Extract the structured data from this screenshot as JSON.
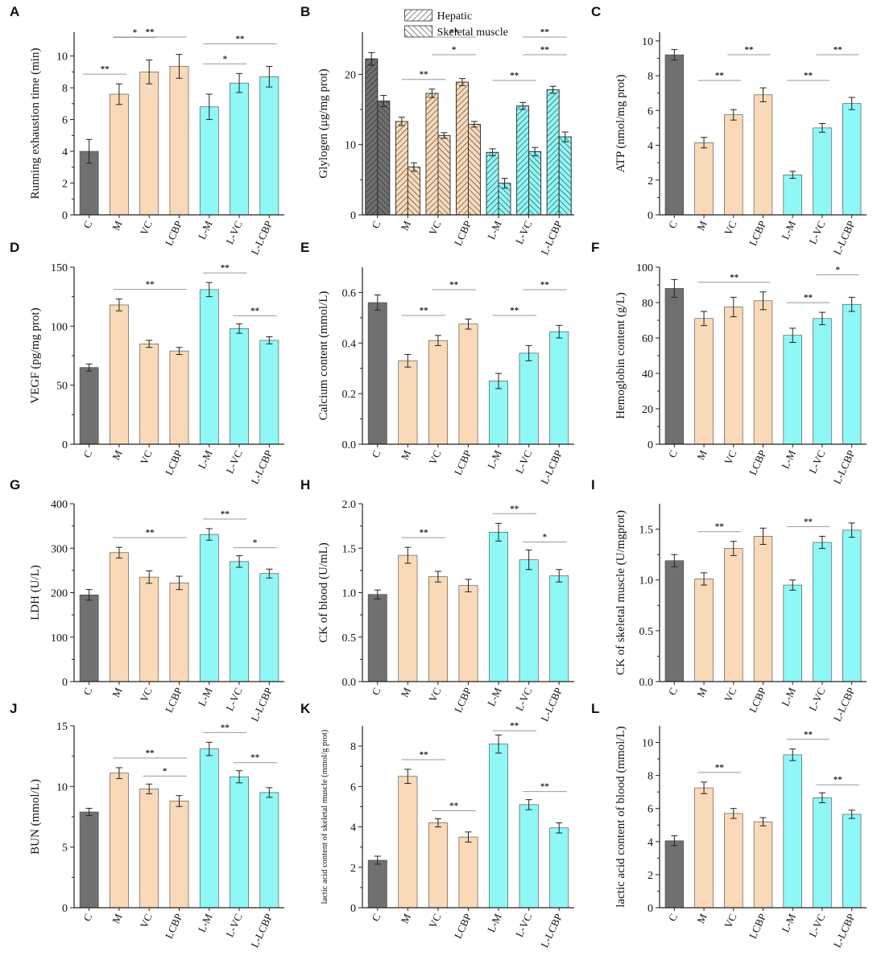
{
  "figure_title": "",
  "colors": {
    "control": "#707070",
    "model_group": "#fad9b8",
    "low_group": "#8ff7f5",
    "axis": "#222222",
    "sig_line": "#999999"
  },
  "chart_data": [
    {
      "panel": "A",
      "type": "bar",
      "title": "",
      "categories": [
        "C",
        "M",
        "VC",
        "LCBP",
        "L-M",
        "L-VC",
        "L-LCBP"
      ],
      "series": [
        {
          "name": "Running exhaustion time",
          "values": [
            4.0,
            7.6,
            9.0,
            9.35,
            6.8,
            8.3,
            8.7
          ],
          "errors": [
            0.75,
            0.65,
            0.75,
            0.75,
            0.8,
            0.6,
            0.65
          ]
        }
      ],
      "ylabel": "Running exhaustion time (min)",
      "xlabel": "",
      "ylim": [
        0,
        11.5
      ],
      "yticks": [
        0,
        2,
        4,
        6,
        8,
        10
      ],
      "yticklabels": [
        "0",
        "2",
        "4",
        "6",
        "8",
        "10"
      ],
      "significance": [
        {
          "from": 0,
          "to": 1,
          "level": 0,
          "label": "**"
        },
        {
          "from": 1,
          "to": 2,
          "level": 1,
          "label": "*"
        },
        {
          "from": 1,
          "to": 3,
          "level": 2,
          "label": "**"
        },
        {
          "from": 4,
          "to": 5,
          "level": 0,
          "label": "*"
        },
        {
          "from": 4,
          "to": 6,
          "level": 1,
          "label": "**"
        }
      ]
    },
    {
      "panel": "B",
      "type": "bar",
      "title": "",
      "categories": [
        "C",
        "M",
        "VC",
        "LCBP",
        "L-M",
        "L-VC",
        "L-LCBP"
      ],
      "series": [
        {
          "name": "Hepatic",
          "values": [
            22.2,
            13.3,
            17.3,
            18.9,
            8.9,
            15.5,
            17.8
          ],
          "errors": [
            0.9,
            0.6,
            0.6,
            0.5,
            0.5,
            0.5,
            0.5
          ]
        },
        {
          "name": "Skeletal muscle",
          "values": [
            16.2,
            6.8,
            11.3,
            12.9,
            4.5,
            9.0,
            11.1
          ],
          "errors": [
            0.8,
            0.6,
            0.4,
            0.4,
            0.7,
            0.6,
            0.7
          ]
        }
      ],
      "legend": [
        "Hepatic",
        "Skeletal muscle"
      ],
      "ylabel": "Glylogen (μg/mg prot)",
      "xlabel": "",
      "ylim": [
        0,
        26
      ],
      "yticks": [
        0,
        10,
        20
      ],
      "yticklabels": [
        "0",
        "10",
        "20"
      ],
      "significance": [
        {
          "from": 1,
          "to": 2,
          "level": 0,
          "label": "**"
        },
        {
          "from": 2,
          "to": 3,
          "level": 1,
          "label": "*"
        },
        {
          "from": 2,
          "to": 3,
          "level": 2,
          "label": "**"
        },
        {
          "from": 4,
          "to": 5,
          "level": 0,
          "label": "**"
        },
        {
          "from": 5,
          "to": 6,
          "level": 1,
          "label": "**"
        },
        {
          "from": 5,
          "to": 6,
          "level": 2,
          "label": "**"
        }
      ]
    },
    {
      "panel": "C",
      "type": "bar",
      "title": "",
      "categories": [
        "C",
        "M",
        "VC",
        "LCBP",
        "L-M",
        "L-VC",
        "L-LCBP"
      ],
      "series": [
        {
          "name": "ATP",
          "values": [
            9.2,
            4.15,
            5.75,
            6.9,
            2.3,
            5.0,
            6.4
          ],
          "errors": [
            0.3,
            0.3,
            0.3,
            0.4,
            0.2,
            0.25,
            0.35
          ]
        }
      ],
      "ylabel": "ATP (nmol/mg prot)",
      "xlabel": "",
      "ylim": [
        0,
        10.5
      ],
      "yticks": [
        0,
        2,
        4,
        6,
        8,
        10
      ],
      "yticklabels": [
        "0",
        "2",
        "4",
        "6",
        "8",
        "10"
      ],
      "significance": [
        {
          "from": 1,
          "to": 2,
          "level": 0,
          "label": "**"
        },
        {
          "from": 2,
          "to": 3,
          "level": 1,
          "label": "**"
        },
        {
          "from": 4,
          "to": 5,
          "level": 0,
          "label": "**"
        },
        {
          "from": 5,
          "to": 6,
          "level": 1,
          "label": "**"
        }
      ]
    },
    {
      "panel": "D",
      "type": "bar",
      "title": "",
      "categories": [
        "C",
        "M",
        "VC",
        "LCBP",
        "L-M",
        "L-VC",
        "L-LCBP"
      ],
      "series": [
        {
          "name": "VEGF",
          "values": [
            65,
            118,
            85,
            79,
            131,
            98,
            88
          ],
          "errors": [
            3,
            5,
            3,
            3,
            6,
            4,
            3
          ]
        }
      ],
      "ylabel": "VEGF (pg/mg prot)",
      "xlabel": "",
      "ylim": [
        0,
        150
      ],
      "yticks": [
        0,
        50,
        100,
        150
      ],
      "yticklabels": [
        "0",
        "50",
        "100",
        "150"
      ],
      "significance": [
        {
          "from": 1,
          "to": 3,
          "level": 0,
          "label": "**"
        },
        {
          "from": 4,
          "to": 5,
          "level": 0,
          "label": "**"
        },
        {
          "from": 5,
          "to": 6,
          "level": -1,
          "label": "**"
        }
      ]
    },
    {
      "panel": "E",
      "type": "bar",
      "title": "",
      "categories": [
        "C",
        "M",
        "VC",
        "LCBP",
        "L-M",
        "L-VC",
        "L-LCBP"
      ],
      "series": [
        {
          "name": "Calcium content",
          "values": [
            0.56,
            0.33,
            0.41,
            0.475,
            0.25,
            0.36,
            0.445
          ],
          "errors": [
            0.03,
            0.025,
            0.02,
            0.02,
            0.03,
            0.03,
            0.025
          ]
        }
      ],
      "ylabel": "Calcium content (mmol/L)",
      "xlabel": "",
      "ylim": [
        0,
        0.7
      ],
      "yticks": [
        0,
        0.2,
        0.4,
        0.6
      ],
      "yticklabels": [
        "0.0",
        "0.2",
        "0.4",
        "0.6"
      ],
      "significance": [
        {
          "from": 1,
          "to": 2,
          "level": 0,
          "label": "**"
        },
        {
          "from": 2,
          "to": 3,
          "level": 1,
          "label": "**"
        },
        {
          "from": 4,
          "to": 5,
          "level": 0,
          "label": "**"
        },
        {
          "from": 5,
          "to": 6,
          "level": 1,
          "label": "**"
        }
      ]
    },
    {
      "panel": "F",
      "type": "bar",
      "title": "",
      "categories": [
        "C",
        "M",
        "VC",
        "LCBP",
        "L-M",
        "L-VC",
        "L-LCBP"
      ],
      "series": [
        {
          "name": "Hemoglobin content",
          "values": [
            88,
            71,
            77.5,
            81,
            61.5,
            71,
            79
          ],
          "errors": [
            5,
            4,
            5.5,
            5,
            4,
            3.5,
            4
          ]
        }
      ],
      "ylabel": "Hemoglobin content (g/L)",
      "xlabel": "",
      "ylim": [
        0,
        100
      ],
      "yticks": [
        0,
        20,
        40,
        60,
        80,
        100
      ],
      "yticklabels": [
        "0",
        "20",
        "40",
        "60",
        "80",
        "100"
      ],
      "significance": [
        {
          "from": 1,
          "to": 3,
          "level": 0,
          "label": "**"
        },
        {
          "from": 4,
          "to": 5,
          "level": 0,
          "label": "**"
        },
        {
          "from": 5,
          "to": 6,
          "level": 1,
          "label": "*"
        }
      ]
    },
    {
      "panel": "G",
      "type": "bar",
      "title": "",
      "categories": [
        "C",
        "M",
        "VC",
        "LCBP",
        "L-M",
        "L-VC",
        "L-LCBP"
      ],
      "series": [
        {
          "name": "LDH",
          "values": [
            195,
            290,
            235,
            222,
            331,
            270,
            243
          ],
          "errors": [
            12,
            12,
            14,
            15,
            13,
            13,
            10
          ]
        }
      ],
      "ylabel": "LDH (U/L)",
      "xlabel": "",
      "ylim": [
        0,
        400
      ],
      "yticks": [
        0,
        100,
        200,
        300,
        400
      ],
      "yticklabels": [
        "0",
        "100",
        "200",
        "300",
        "400"
      ],
      "significance": [
        {
          "from": 1,
          "to": 3,
          "level": 0,
          "label": "**"
        },
        {
          "from": 4,
          "to": 5,
          "level": 0,
          "label": "**"
        },
        {
          "from": 5,
          "to": 6,
          "level": -1,
          "label": "*"
        }
      ]
    },
    {
      "panel": "H",
      "type": "bar",
      "title": "",
      "categories": [
        "C",
        "M",
        "VC",
        "LCBP",
        "L-M",
        "L-VC",
        "L-LCBP"
      ],
      "series": [
        {
          "name": "CK of blood",
          "values": [
            0.98,
            1.42,
            1.18,
            1.08,
            1.68,
            1.37,
            1.19
          ],
          "errors": [
            0.05,
            0.09,
            0.06,
            0.07,
            0.1,
            0.11,
            0.07
          ]
        }
      ],
      "ylabel": "CK of blood (U/mL)",
      "xlabel": "",
      "ylim": [
        0,
        2.0
      ],
      "yticks": [
        0,
        0.5,
        1.0,
        1.5,
        2.0
      ],
      "yticklabels": [
        "0.0",
        "0.5",
        "1.0",
        "1.5",
        "2.0"
      ],
      "significance": [
        {
          "from": 1,
          "to": 2,
          "level": 0,
          "label": "**"
        },
        {
          "from": 4,
          "to": 5,
          "level": 0,
          "label": "**"
        },
        {
          "from": 5,
          "to": 6,
          "level": -1,
          "label": "*"
        }
      ]
    },
    {
      "panel": "I",
      "type": "bar",
      "title": "",
      "categories": [
        "C",
        "M",
        "VC",
        "LCBP",
        "L-M",
        "L-VC",
        "L-LCBP"
      ],
      "series": [
        {
          "name": "CK of skeletal muscle",
          "values": [
            1.19,
            1.01,
            1.31,
            1.43,
            0.95,
            1.37,
            1.49
          ],
          "errors": [
            0.06,
            0.06,
            0.07,
            0.08,
            0.05,
            0.06,
            0.07
          ]
        }
      ],
      "ylabel": "CK of skeletal muscle (U/mgprot)",
      "xlabel": "",
      "ylim": [
        0,
        1.75
      ],
      "yticks": [
        0,
        0.5,
        1.0,
        1.5
      ],
      "yticklabels": [
        "0.0",
        "0.5",
        "1.0",
        "1.5"
      ],
      "significance": [
        {
          "from": 1,
          "to": 2,
          "level": 0,
          "label": "**"
        },
        {
          "from": 4,
          "to": 5,
          "level": 0,
          "label": "**"
        }
      ]
    },
    {
      "panel": "J",
      "type": "bar",
      "title": "",
      "categories": [
        "C",
        "M",
        "VC",
        "LCBP",
        "L-M",
        "L-VC",
        "L-LCBP"
      ],
      "series": [
        {
          "name": "BUN",
          "values": [
            7.9,
            11.1,
            9.8,
            8.8,
            13.1,
            10.8,
            9.5
          ],
          "errors": [
            0.3,
            0.45,
            0.4,
            0.45,
            0.55,
            0.5,
            0.4
          ]
        }
      ],
      "ylabel": "BUN (mmol/L)",
      "xlabel": "",
      "ylim": [
        0,
        15
      ],
      "yticks": [
        0,
        5,
        10,
        15
      ],
      "yticklabels": [
        "0",
        "5",
        "10",
        "15"
      ],
      "significance": [
        {
          "from": 1,
          "to": 3,
          "level": 0,
          "label": "**"
        },
        {
          "from": 2,
          "to": 3,
          "level": -1,
          "label": "*"
        },
        {
          "from": 4,
          "to": 5,
          "level": 0,
          "label": "**"
        },
        {
          "from": 5,
          "to": 6,
          "level": -1,
          "label": "**"
        }
      ]
    },
    {
      "panel": "K",
      "type": "bar",
      "title": "",
      "categories": [
        "C",
        "M",
        "VC",
        "LCBP",
        "L-M",
        "L-VC",
        "L-LCBP"
      ],
      "series": [
        {
          "name": "lactic acid content of skeletal muscle",
          "values": [
            2.35,
            6.5,
            4.2,
            3.5,
            8.1,
            5.1,
            3.95
          ],
          "errors": [
            0.2,
            0.35,
            0.2,
            0.25,
            0.45,
            0.25,
            0.25
          ]
        }
      ],
      "ylabel": "lactic acid content of skeletal muscle (mmol/g prot)",
      "xlabel": "",
      "ylim": [
        0,
        9
      ],
      "yticks": [
        0,
        2,
        4,
        6,
        8
      ],
      "yticklabels": [
        "0",
        "2",
        "4",
        "6",
        "8"
      ],
      "significance": [
        {
          "from": 1,
          "to": 2,
          "level": 0,
          "label": "**"
        },
        {
          "from": 2,
          "to": 3,
          "level": -1,
          "label": "**"
        },
        {
          "from": 4,
          "to": 5,
          "level": 0,
          "label": "**"
        },
        {
          "from": 5,
          "to": 6,
          "level": -1,
          "label": "**"
        }
      ]
    },
    {
      "panel": "L",
      "type": "bar",
      "title": "",
      "categories": [
        "C",
        "M",
        "VC",
        "LCBP",
        "L-M",
        "L-VC",
        "L-LCBP"
      ],
      "series": [
        {
          "name": "lactic acid content of blood",
          "values": [
            4.05,
            7.25,
            5.7,
            5.2,
            9.25,
            6.65,
            5.65
          ],
          "errors": [
            0.3,
            0.35,
            0.3,
            0.25,
            0.35,
            0.3,
            0.25
          ]
        }
      ],
      "ylabel": "lactic acid content of blood (mmol/L)",
      "xlabel": "",
      "ylim": [
        0,
        11
      ],
      "yticks": [
        0,
        2,
        4,
        6,
        8,
        10
      ],
      "yticklabels": [
        "0",
        "2",
        "4",
        "6",
        "8",
        "10"
      ],
      "significance": [
        {
          "from": 1,
          "to": 2,
          "level": 0,
          "label": "**"
        },
        {
          "from": 4,
          "to": 5,
          "level": 0,
          "label": "**"
        },
        {
          "from": 5,
          "to": 6,
          "level": -1,
          "label": "**"
        }
      ]
    }
  ]
}
